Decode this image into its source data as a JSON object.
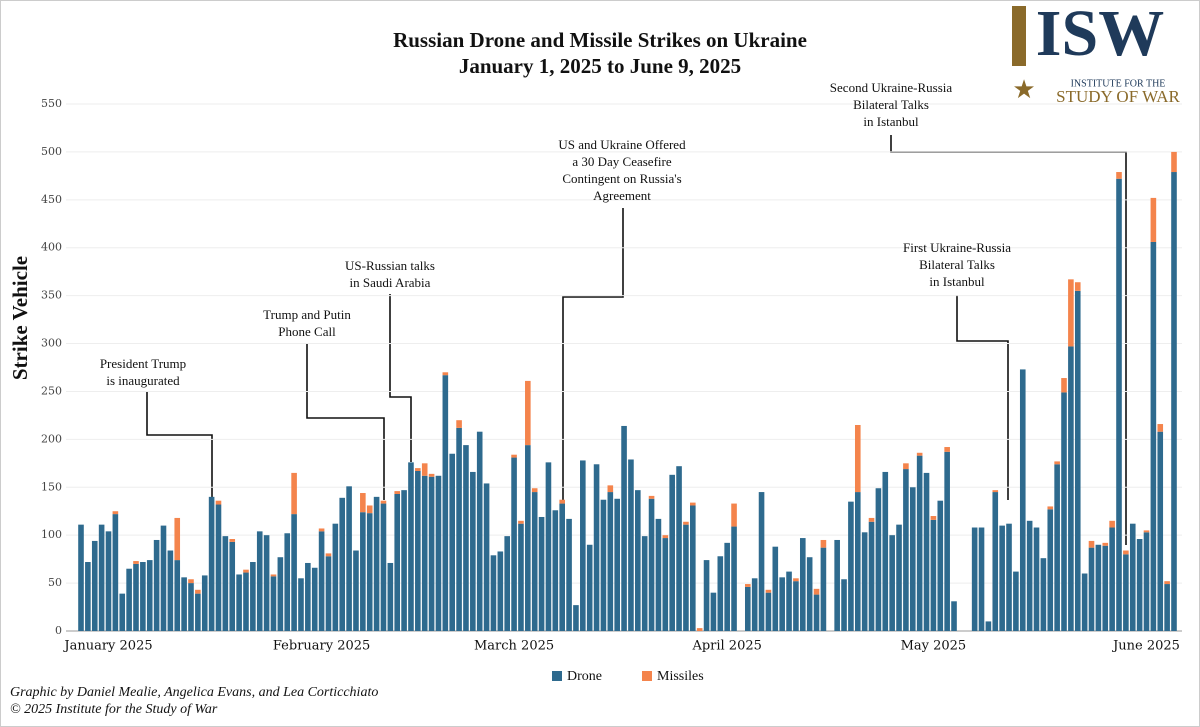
{
  "chart_data": {
    "type": "bar",
    "stacked": true,
    "title": "Russian Drone and Missile Strikes on Ukraine",
    "subtitle": "January 1, 2025 to June 9, 2025",
    "y_label": "Strike Vehicle",
    "ylim": [
      0,
      550
    ],
    "yticks": [
      0,
      50,
      100,
      150,
      200,
      250,
      300,
      350,
      400,
      450,
      500,
      550
    ],
    "grid": true,
    "legend": "bottom",
    "categories": [
      "January 2025",
      null,
      null,
      null,
      null,
      null,
      null,
      null,
      null,
      null,
      null,
      null,
      null,
      null,
      null,
      null,
      null,
      null,
      null,
      null,
      null,
      null,
      null,
      null,
      null,
      null,
      null,
      null,
      null,
      null,
      null,
      "February 2025",
      null,
      null,
      null,
      null,
      null,
      null,
      null,
      null,
      null,
      null,
      null,
      null,
      null,
      null,
      null,
      null,
      null,
      null,
      null,
      null,
      null,
      null,
      null,
      null,
      null,
      null,
      null,
      "March 2025",
      null,
      null,
      null,
      null,
      null,
      null,
      null,
      null,
      null,
      null,
      null,
      null,
      null,
      null,
      null,
      null,
      null,
      null,
      null,
      null,
      null,
      null,
      null,
      null,
      null,
      null,
      null,
      null,
      null,
      null,
      "April 2025",
      null,
      null,
      null,
      null,
      null,
      null,
      null,
      null,
      null,
      null,
      null,
      null,
      null,
      null,
      null,
      null,
      null,
      null,
      null,
      null,
      null,
      null,
      null,
      null,
      null,
      null,
      null,
      null,
      null,
      "May 2025",
      null,
      null,
      null,
      null,
      null,
      null,
      null,
      null,
      null,
      null,
      null,
      null,
      null,
      null,
      null,
      null,
      null,
      null,
      null,
      null,
      null,
      null,
      null,
      null,
      null,
      null,
      null,
      null,
      null,
      null,
      "June 2025",
      null,
      null,
      null,
      null,
      null,
      null,
      null,
      null
    ],
    "series": [
      {
        "name": "Drone",
        "color": "#2e6a8e",
        "values": [
          111,
          72,
          94,
          111,
          104,
          122,
          39,
          65,
          70,
          72,
          74,
          95,
          110,
          84,
          74,
          56,
          50,
          39,
          58,
          140,
          132,
          99,
          93,
          59,
          61,
          72,
          104,
          100,
          57,
          77,
          102,
          122,
          55,
          71,
          66,
          104,
          78,
          112,
          139,
          151,
          84,
          124,
          123,
          140,
          133,
          71,
          143,
          147,
          176,
          167,
          162,
          161,
          162,
          267,
          185,
          212,
          194,
          166,
          208,
          154,
          79,
          83,
          99,
          181,
          112,
          194,
          145,
          119,
          176,
          126,
          133,
          117,
          27,
          178,
          90,
          174,
          137,
          145,
          138,
          214,
          179,
          147,
          99,
          138,
          117,
          97,
          163,
          172,
          111,
          131,
          0,
          74,
          40,
          78,
          92,
          109,
          null,
          46,
          55,
          145,
          40,
          88,
          56,
          62,
          52,
          97,
          77,
          38,
          87,
          null,
          95,
          54,
          135,
          145,
          103,
          114,
          149,
          166,
          100,
          111,
          169,
          150,
          183,
          165,
          116,
          136,
          187,
          31,
          null,
          null,
          108,
          108,
          10,
          145,
          110,
          112,
          62,
          273,
          115,
          108,
          76,
          127,
          174,
          249,
          297,
          355,
          60,
          87,
          90,
          89,
          108,
          472,
          80,
          112,
          96,
          103,
          406,
          208,
          49,
          479
        ]
      },
      {
        "name": "Missiles",
        "color": "#f4844c",
        "values": [
          0,
          0,
          0,
          0,
          0,
          3,
          0,
          0,
          3,
          0,
          0,
          0,
          0,
          0,
          44,
          0,
          4,
          4,
          0,
          0,
          4,
          0,
          3,
          0,
          3,
          0,
          0,
          0,
          2,
          0,
          0,
          43,
          0,
          0,
          0,
          3,
          3,
          0,
          0,
          0,
          0,
          20,
          8,
          0,
          3,
          0,
          3,
          0,
          0,
          3,
          13,
          3,
          0,
          3,
          0,
          8,
          0,
          0,
          0,
          0,
          0,
          0,
          0,
          3,
          3,
          67,
          4,
          0,
          0,
          0,
          4,
          0,
          0,
          0,
          0,
          0,
          0,
          7,
          0,
          0,
          0,
          0,
          0,
          3,
          0,
          3,
          0,
          0,
          3,
          3,
          3,
          0,
          0,
          0,
          0,
          24,
          null,
          3,
          0,
          0,
          3,
          0,
          0,
          0,
          3,
          0,
          0,
          6,
          8,
          null,
          0,
          0,
          0,
          70,
          0,
          4,
          0,
          0,
          0,
          0,
          6,
          0,
          3,
          0,
          4,
          0,
          5,
          0,
          null,
          null,
          0,
          0,
          0,
          2,
          0,
          0,
          0,
          0,
          0,
          0,
          0,
          3,
          3,
          15,
          70,
          9,
          0,
          7,
          0,
          3,
          7,
          7,
          4,
          0,
          0,
          2,
          46,
          8,
          3,
          21
        ]
      }
    ],
    "annotations": [
      {
        "lines": [
          "President Trump",
          "is inaugurated"
        ]
      },
      {
        "lines": [
          "Trump and Putin",
          "Phone Call"
        ]
      },
      {
        "lines": [
          "US-Russian talks",
          "in Saudi Arabia"
        ]
      },
      {
        "lines": [
          "US and Ukraine Offered",
          "a 30 Day Ceasefire",
          "Contingent on Russia's",
          "Agreement"
        ]
      },
      {
        "lines": [
          "First Ukraine-Russia",
          "Bilateral Talks",
          "in Istanbul"
        ]
      },
      {
        "lines": [
          "Second Ukraine-Russia",
          "Bilateral Talks",
          "in Istanbul"
        ]
      }
    ],
    "credits": [
      "Graphic by Daniel Mealie, Angelica Evans, and Lea Corticchiato",
      "© 2025 Institute for the Study of War"
    ],
    "logo": {
      "mark": "ISW",
      "line1": "INSTITUTE FOR THE",
      "line2": "STUDY OF WAR"
    }
  }
}
